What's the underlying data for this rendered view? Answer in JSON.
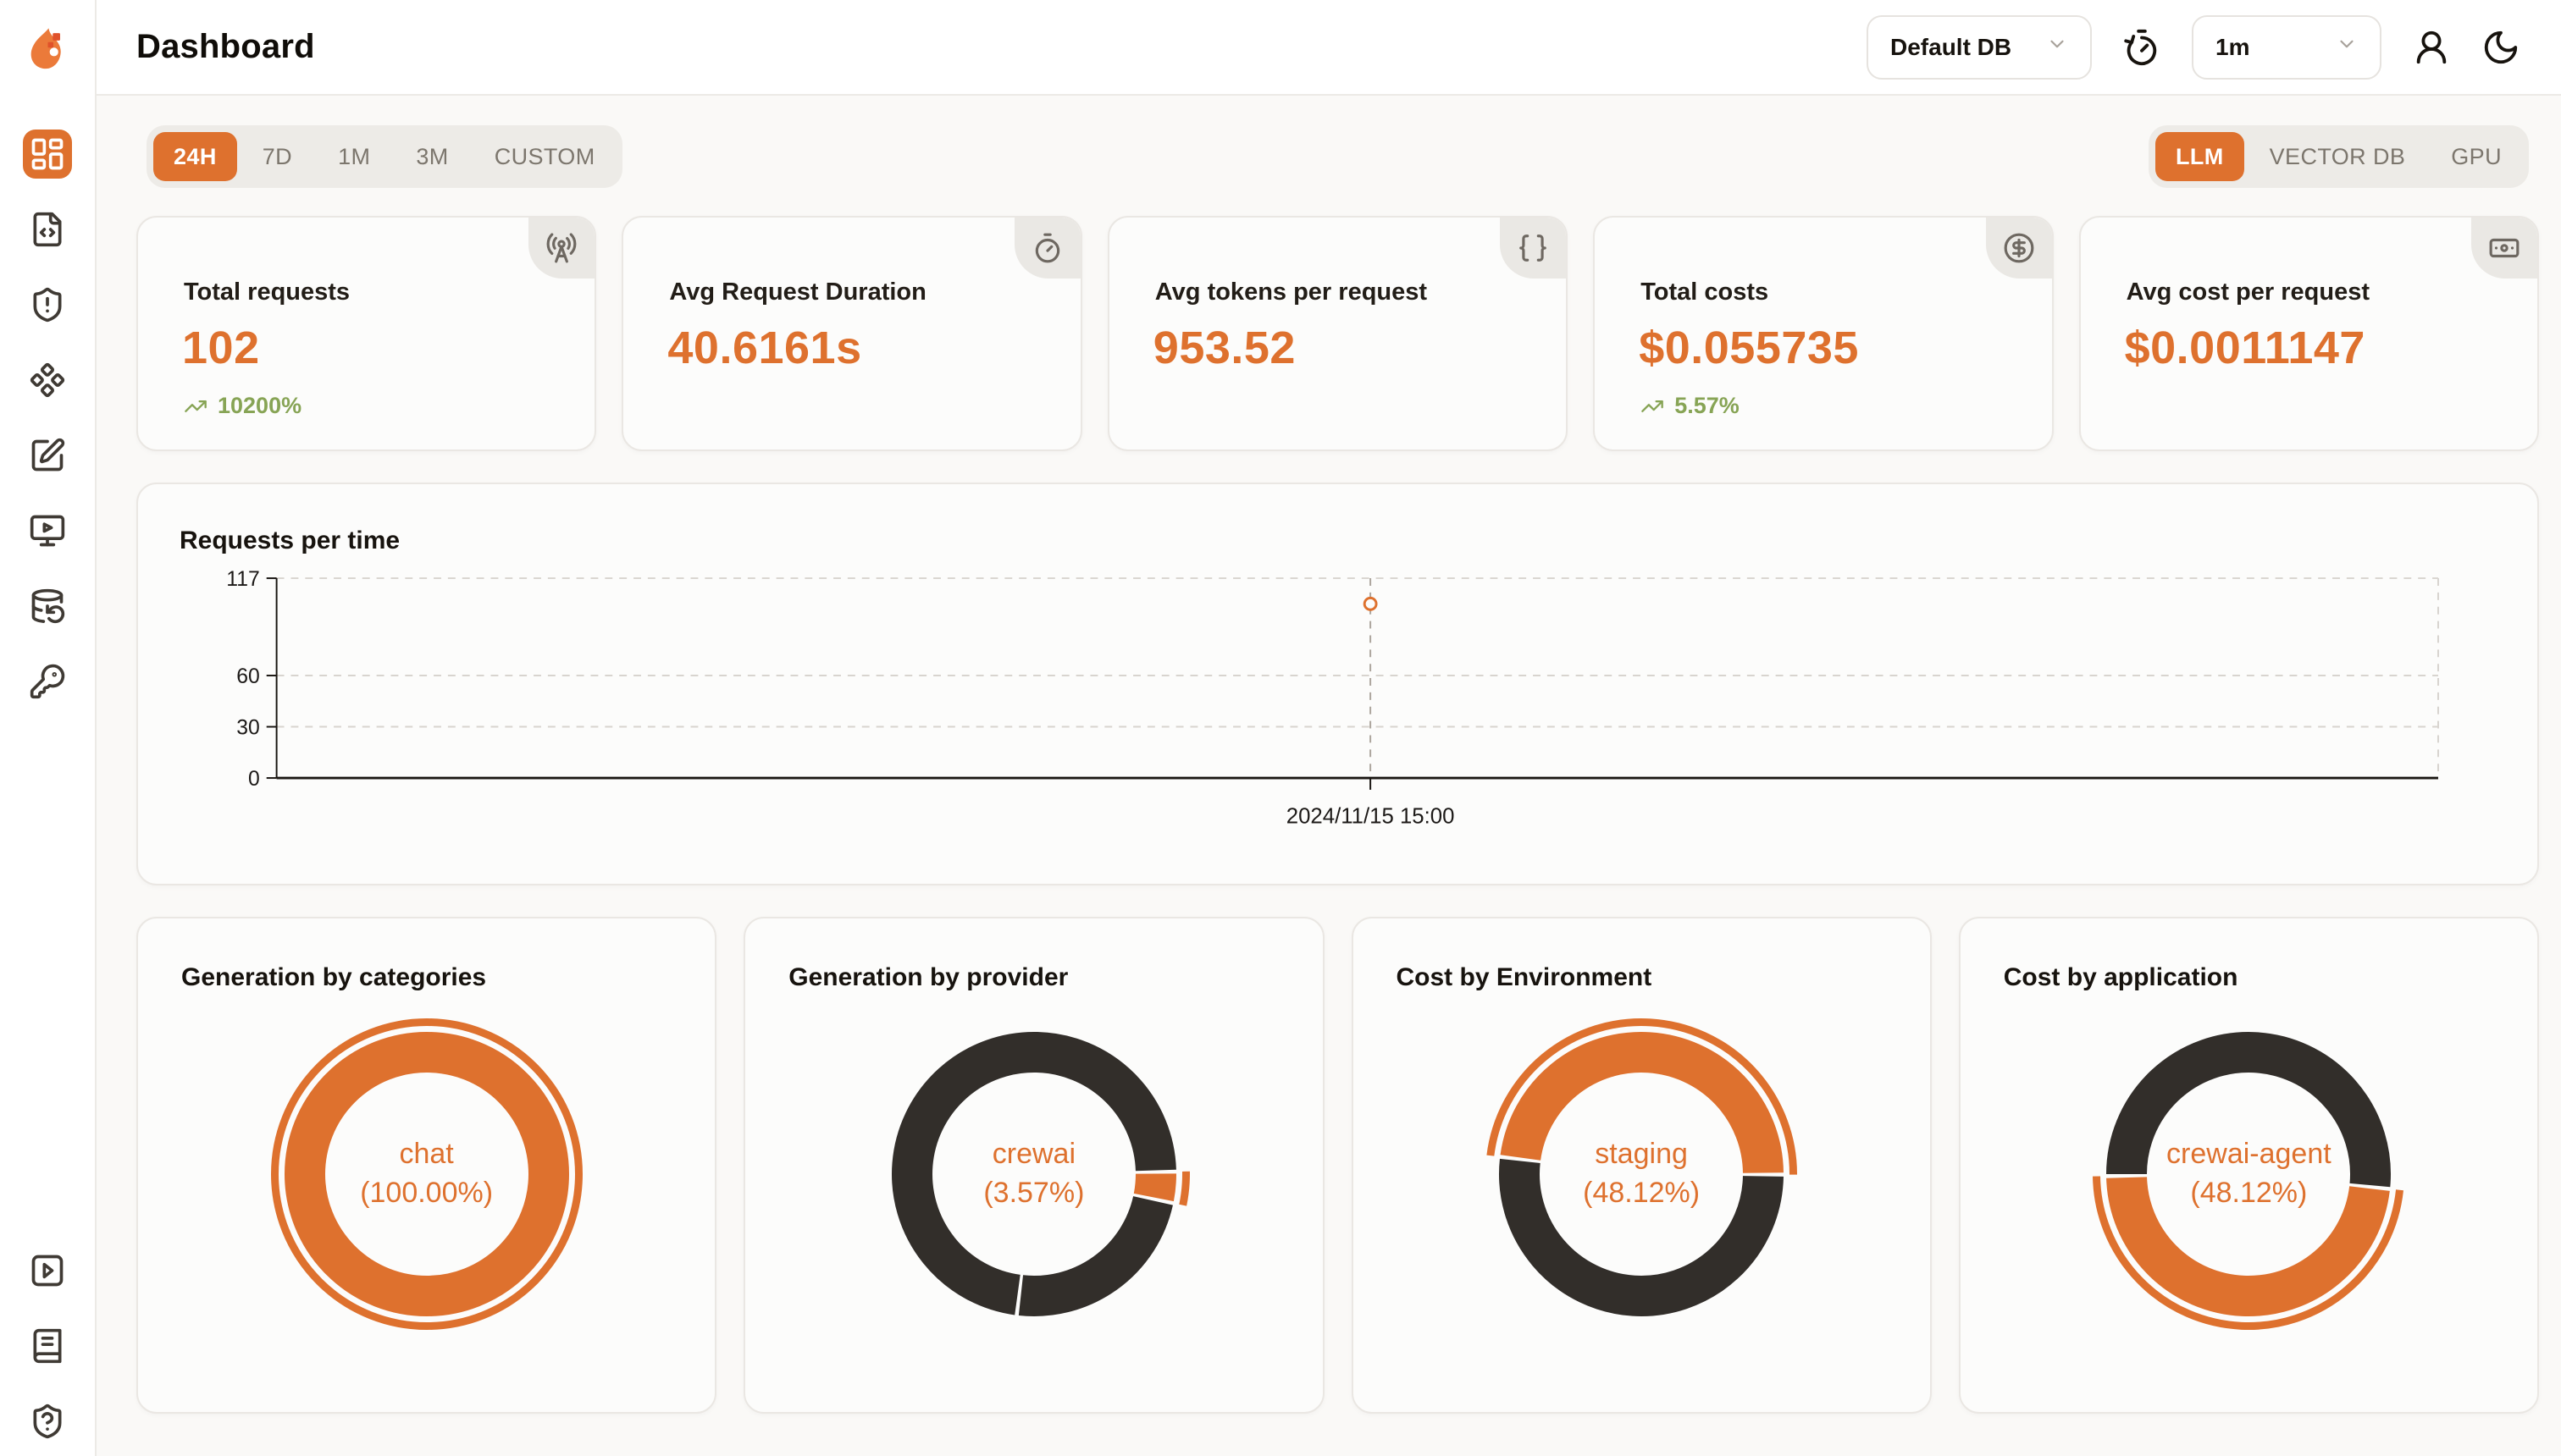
{
  "page": {
    "title": "Dashboard"
  },
  "colors": {
    "accent": "#DE712E",
    "dark": "#322E2A",
    "green": "#87A455",
    "grid": "#D8D4CF",
    "crosshair": "#ACA59D",
    "axis": "#1A1612",
    "tick_text": "#1C1917",
    "card_bg": "#FCFCFB"
  },
  "header": {
    "db_select": {
      "value": "Default DB",
      "icon": "chevron-down-icon"
    },
    "interval_select": {
      "value": "1m",
      "icon": "chevron-down-icon"
    },
    "icons": [
      "history-icon",
      "user-icon",
      "moon-icon"
    ]
  },
  "sidebar": {
    "icons_top": [
      "layout-dashboard-icon",
      "file-code-icon",
      "shield-alert-icon",
      "component-icon",
      "square-pen-icon",
      "monitor-play-icon",
      "database-backup-icon",
      "key-icon"
    ],
    "icons_bottom": [
      "square-play-icon",
      "book-icon",
      "shield-question-icon"
    ],
    "active": "layout-dashboard-icon"
  },
  "time_tabs": {
    "active": "24H",
    "items": [
      "24H",
      "7D",
      "1M",
      "3M",
      "CUSTOM"
    ]
  },
  "scope_tabs": {
    "active": "LLM",
    "items": [
      "LLM",
      "VECTOR DB",
      "GPU"
    ]
  },
  "stat_cards": [
    {
      "label": "Total requests",
      "value": "102",
      "trend": "10200%",
      "icon": "radio-tower-icon"
    },
    {
      "label": "Avg Request Duration",
      "value": "40.6161s",
      "icon": "timer-icon"
    },
    {
      "label": "Avg tokens per request",
      "value": "953.52",
      "icon": "braces-icon"
    },
    {
      "label": "Total costs",
      "value": "$0.055735",
      "trend": "5.57%",
      "icon": "circle-dollar-icon"
    },
    {
      "label": "Avg cost per request",
      "value": "$0.0011147",
      "icon": "banknote-icon"
    }
  ],
  "chart_data": [
    {
      "type": "line",
      "title": "Requests per time",
      "xlabel": "",
      "ylabel": "",
      "ylim": [
        0,
        117
      ],
      "yticks": [
        0,
        30,
        60,
        117
      ],
      "grid": "dashed-horizontal",
      "points": [
        {
          "x": "2024/11/15 15:00",
          "y": 102
        }
      ],
      "point_x_fraction": 0.506,
      "point_color": "#DE712E"
    },
    {
      "type": "pie",
      "title": "Generation by categories",
      "center_label": {
        "name": "chat",
        "pct": "(100.00%)"
      },
      "segments": [
        {
          "name": "chat",
          "value_pct": 100.0,
          "color": "#DE712E",
          "start_deg": 0,
          "end_deg": 360
        }
      ],
      "highlight": {
        "start_deg": 0,
        "end_deg": 360,
        "color": "#DE712E"
      }
    },
    {
      "type": "pie",
      "title": "Generation by provider",
      "center_label": {
        "name": "crewai",
        "pct": "(3.57%)"
      },
      "segments": [
        {
          "name": "",
          "value_pct": 23.7,
          "color": "#322E2A",
          "start_deg": 101.8,
          "end_deg": 187
        },
        {
          "name": "",
          "value_pct": 72.7,
          "color": "#322E2A",
          "start_deg": 187,
          "end_deg": 449
        },
        {
          "name": "crewai",
          "value_pct": 3.57,
          "color": "#DE712E",
          "start_deg": 89,
          "end_deg": 101.8
        }
      ],
      "highlight": {
        "start_deg": 89,
        "end_deg": 101.8,
        "color": "#DE712E"
      }
    },
    {
      "type": "pie",
      "title": "Cost by Environment",
      "center_label": {
        "name": "staging",
        "pct": "(48.12%)"
      },
      "segments": [
        {
          "name": "staging",
          "value_pct": 48.12,
          "color": "#DE712E",
          "start_deg": 277,
          "end_deg": 450.2
        },
        {
          "name": "",
          "value_pct": 51.88,
          "color": "#322E2A",
          "start_deg": 450.2,
          "end_deg": 637
        }
      ],
      "highlight": {
        "start_deg": 277,
        "end_deg": 450.2,
        "color": "#DE712E"
      }
    },
    {
      "type": "pie",
      "title": "Cost by application",
      "center_label": {
        "name": "crewai-agent",
        "pct": "(48.12%)"
      },
      "segments": [
        {
          "name": "crewai-agent",
          "value_pct": 48.12,
          "color": "#DE712E",
          "start_deg": 96,
          "end_deg": 269.2
        },
        {
          "name": "",
          "value_pct": 51.88,
          "color": "#322E2A",
          "start_deg": 269.2,
          "end_deg": 456
        }
      ],
      "highlight": {
        "start_deg": 96,
        "end_deg": 269.2,
        "color": "#DE712E"
      }
    }
  ]
}
